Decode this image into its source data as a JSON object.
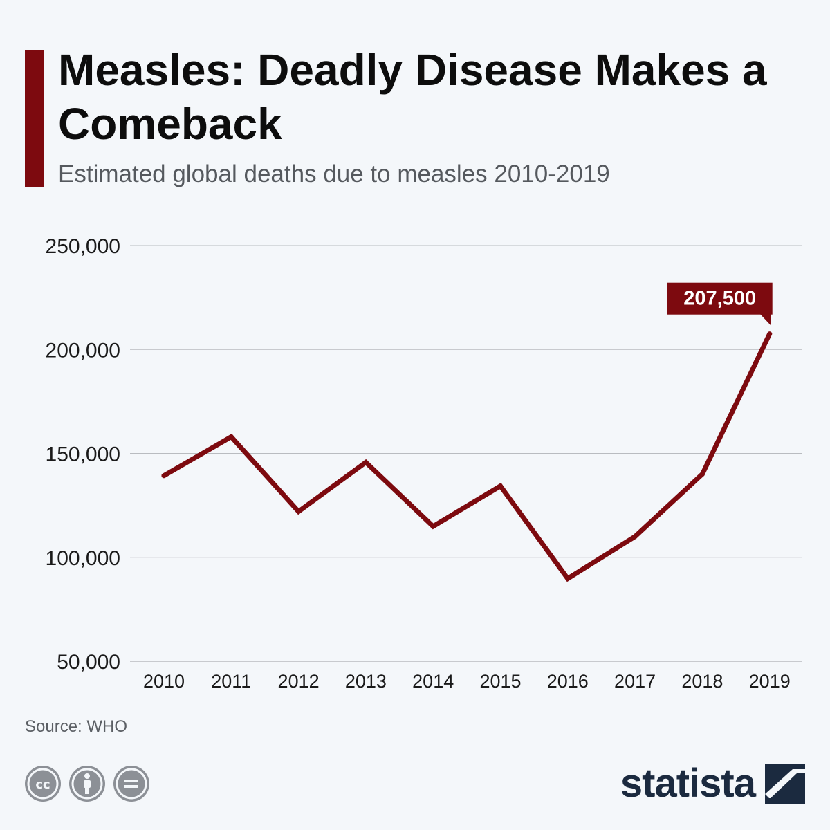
{
  "header": {
    "title": "Measles: Deadly Disease Makes a Comeback",
    "subtitle": "Estimated global deaths due to measles 2010-2019"
  },
  "footer": {
    "source": "Source: WHO",
    "brand": "statista",
    "license_icons": [
      "cc-icon",
      "attribution-icon",
      "no-derivatives-icon"
    ]
  },
  "colors": {
    "accent": "#7d0a0f",
    "background": "#f4f7fa",
    "gridline": "#b9bcc0",
    "brand": "#1b2a3f"
  },
  "chart_data": {
    "type": "line",
    "title": "",
    "xlabel": "",
    "ylabel": "",
    "categories": [
      "2010",
      "2011",
      "2012",
      "2013",
      "2014",
      "2015",
      "2016",
      "2017",
      "2018",
      "2019"
    ],
    "series": [
      {
        "values": [
          139300,
          158000,
          122000,
          145700,
          114900,
          134300,
          89780,
          110000,
          140000,
          207500
        ]
      }
    ],
    "ylim": [
      50000,
      250000
    ],
    "yticks": [
      50000,
      100000,
      150000,
      200000,
      250000
    ],
    "ytick_labels": [
      "50,000",
      "100,000",
      "150,000",
      "200,000",
      "250,000"
    ],
    "grid": true,
    "annotations": [
      {
        "category": "2019",
        "label": "207,500"
      }
    ]
  }
}
